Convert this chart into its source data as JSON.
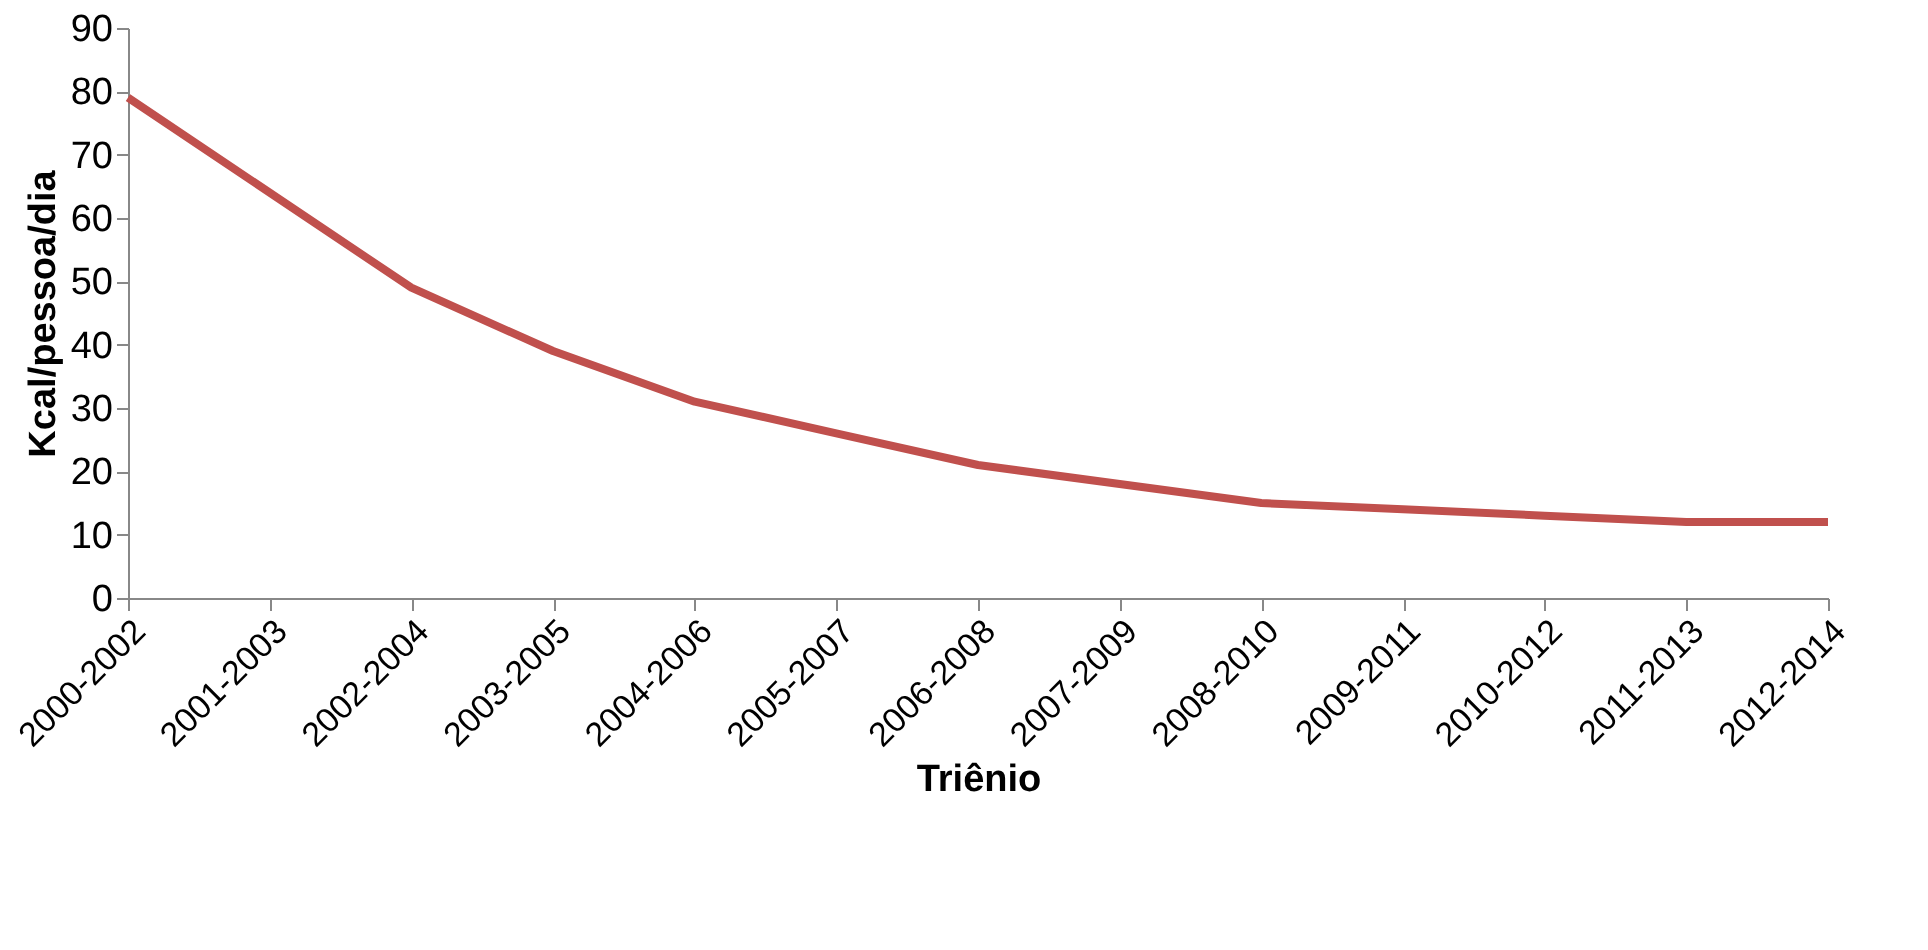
{
  "chart_data": {
    "type": "line",
    "xlabel": "Triênio",
    "ylabel": "Kcal/pessoa/dia",
    "categories": [
      "2000-2002",
      "2001-2003",
      "2002-2004",
      "2003-2005",
      "2004-2006",
      "2005-2007",
      "2006-2008",
      "2007-2009",
      "2008-2010",
      "2009-2011",
      "2010-2012",
      "2011-2013",
      "2012-2014"
    ],
    "series": [
      {
        "color": "#c0504d",
        "values": [
          79,
          64,
          49,
          39,
          31,
          26,
          21,
          18,
          15,
          14,
          13,
          12,
          12
        ]
      }
    ],
    "ylim": [
      0,
      90
    ],
    "yticks": [
      0,
      10,
      20,
      30,
      40,
      50,
      60,
      70,
      80,
      90
    ],
    "grid": false,
    "marker": "none",
    "line_style": "solid"
  }
}
